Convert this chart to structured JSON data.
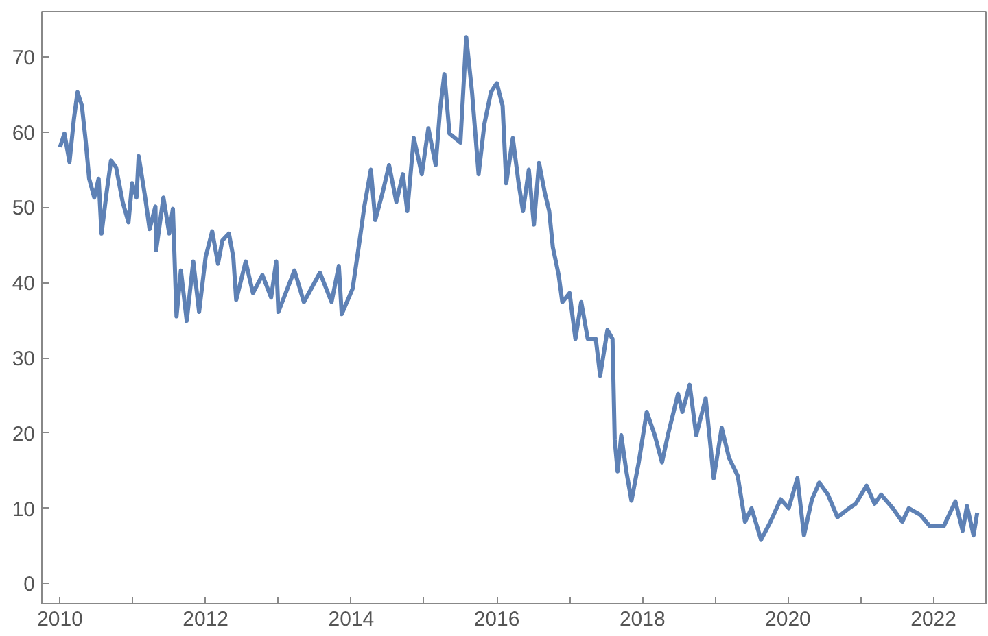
{
  "chart_data": {
    "type": "line",
    "xlim": [
      2009.75,
      2022.72
    ],
    "ylim": [
      -2.7,
      76
    ],
    "xticks": [
      2010,
      {
        "value": 2011,
        "label": null
      },
      2012,
      {
        "value": 2013,
        "label": null
      },
      2014,
      {
        "value": 2015,
        "label": null
      },
      2016,
      {
        "value": 2017,
        "label": null
      },
      2018,
      {
        "value": 2019,
        "label": null
      },
      2020,
      {
        "value": 2021,
        "label": null
      },
      2022
    ],
    "yticks": [
      0,
      10,
      20,
      30,
      40,
      50,
      60,
      70
    ],
    "grid": false,
    "marker": "none",
    "line_style": "solid",
    "series": [
      {
        "color": "#5e81b5",
        "x": [
          2010.0,
          2010.06,
          2010.13,
          2010.19,
          2010.24,
          2010.3,
          2010.35,
          2010.4,
          2010.47,
          2010.53,
          2010.57,
          2010.64,
          2010.7,
          2010.77,
          2010.86,
          2010.94,
          2010.99,
          2011.05,
          2011.08,
          2011.17,
          2011.23,
          2011.31,
          2011.32,
          2011.42,
          2011.5,
          2011.55,
          2011.6,
          2011.66,
          2011.74,
          2011.83,
          2011.91,
          2012.0,
          2012.09,
          2012.17,
          2012.23,
          2012.32,
          2012.38,
          2012.42,
          2012.55,
          2012.65,
          2012.78,
          2012.9,
          2012.97,
          2013.0,
          2013.22,
          2013.35,
          2013.57,
          2013.73,
          2013.83,
          2013.87,
          2014.02,
          2014.12,
          2014.18,
          2014.27,
          2014.33,
          2014.43,
          2014.52,
          2014.62,
          2014.71,
          2014.77,
          2014.86,
          2014.97,
          2015.06,
          2015.16,
          2015.22,
          2015.28,
          2015.35,
          2015.5,
          2015.58,
          2015.66,
          2015.75,
          2015.83,
          2015.92,
          2016.0,
          2016.08,
          2016.13,
          2016.22,
          2016.3,
          2016.36,
          2016.44,
          2016.51,
          2016.58,
          2016.66,
          2016.72,
          2016.77,
          2016.85,
          2016.9,
          2017.0,
          2017.08,
          2017.16,
          2017.25,
          2017.36,
          2017.42,
          2017.52,
          2017.59,
          2017.62,
          2017.66,
          2017.71,
          2017.78,
          2017.85,
          2017.95,
          2018.06,
          2018.17,
          2018.27,
          2018.35,
          2018.49,
          2018.55,
          2018.65,
          2018.74,
          2018.87,
          2018.98,
          2019.09,
          2019.19,
          2019.31,
          2019.41,
          2019.5,
          2019.63,
          2019.76,
          2019.9,
          2020.01,
          2020.13,
          2020.22,
          2020.33,
          2020.43,
          2020.55,
          2020.68,
          2020.84,
          2020.93,
          2021.08,
          2021.19,
          2021.28,
          2021.44,
          2021.57,
          2021.66,
          2021.82,
          2021.95,
          2022.14,
          2022.3,
          2022.4,
          2022.46,
          2022.55,
          2022.6
        ],
        "values": [
          58,
          59.8,
          56,
          61.7,
          65.3,
          63.5,
          59,
          53.8,
          51.3,
          53.8,
          46.5,
          52,
          56.2,
          55.3,
          50.7,
          48,
          53.2,
          51.3,
          56.8,
          51.3,
          47.1,
          50.1,
          44.3,
          51.3,
          46.5,
          49.8,
          35.5,
          41.6,
          34.9,
          42.8,
          36.1,
          43.4,
          46.8,
          42.5,
          45.6,
          46.5,
          43.4,
          37.7,
          42.8,
          38.6,
          41,
          38,
          42.8,
          36.1,
          41.6,
          37.4,
          41.3,
          37.4,
          42.2,
          35.8,
          39.2,
          45.9,
          50.1,
          55,
          48.3,
          51.9,
          55.6,
          50.7,
          54.4,
          49.5,
          59.2,
          54.4,
          60.5,
          55.6,
          62.9,
          67.7,
          59.8,
          58.6,
          72.6,
          65.3,
          54.4,
          61.1,
          65.3,
          66.5,
          63.5,
          53.2,
          59.2,
          53.2,
          49.5,
          55,
          47.7,
          55.9,
          51.9,
          49.5,
          44.7,
          41,
          37.4,
          38.6,
          32.5,
          37.4,
          32.5,
          32.5,
          27.6,
          33.7,
          32.5,
          19.1,
          14.9,
          19.7,
          14.9,
          11,
          16.1,
          22.8,
          19.7,
          16.1,
          19.7,
          25.2,
          22.8,
          26.4,
          19.7,
          24.6,
          14,
          20.7,
          16.7,
          14.3,
          8.2,
          10,
          5.8,
          8.2,
          11.2,
          10,
          14,
          6.4,
          11.2,
          13.4,
          11.8,
          8.8,
          10,
          10.6,
          13,
          10.6,
          11.8,
          10,
          8.2,
          10,
          9.1,
          7.6,
          7.6,
          10.9,
          7,
          10.3,
          6.4,
          9.4
        ]
      }
    ]
  }
}
